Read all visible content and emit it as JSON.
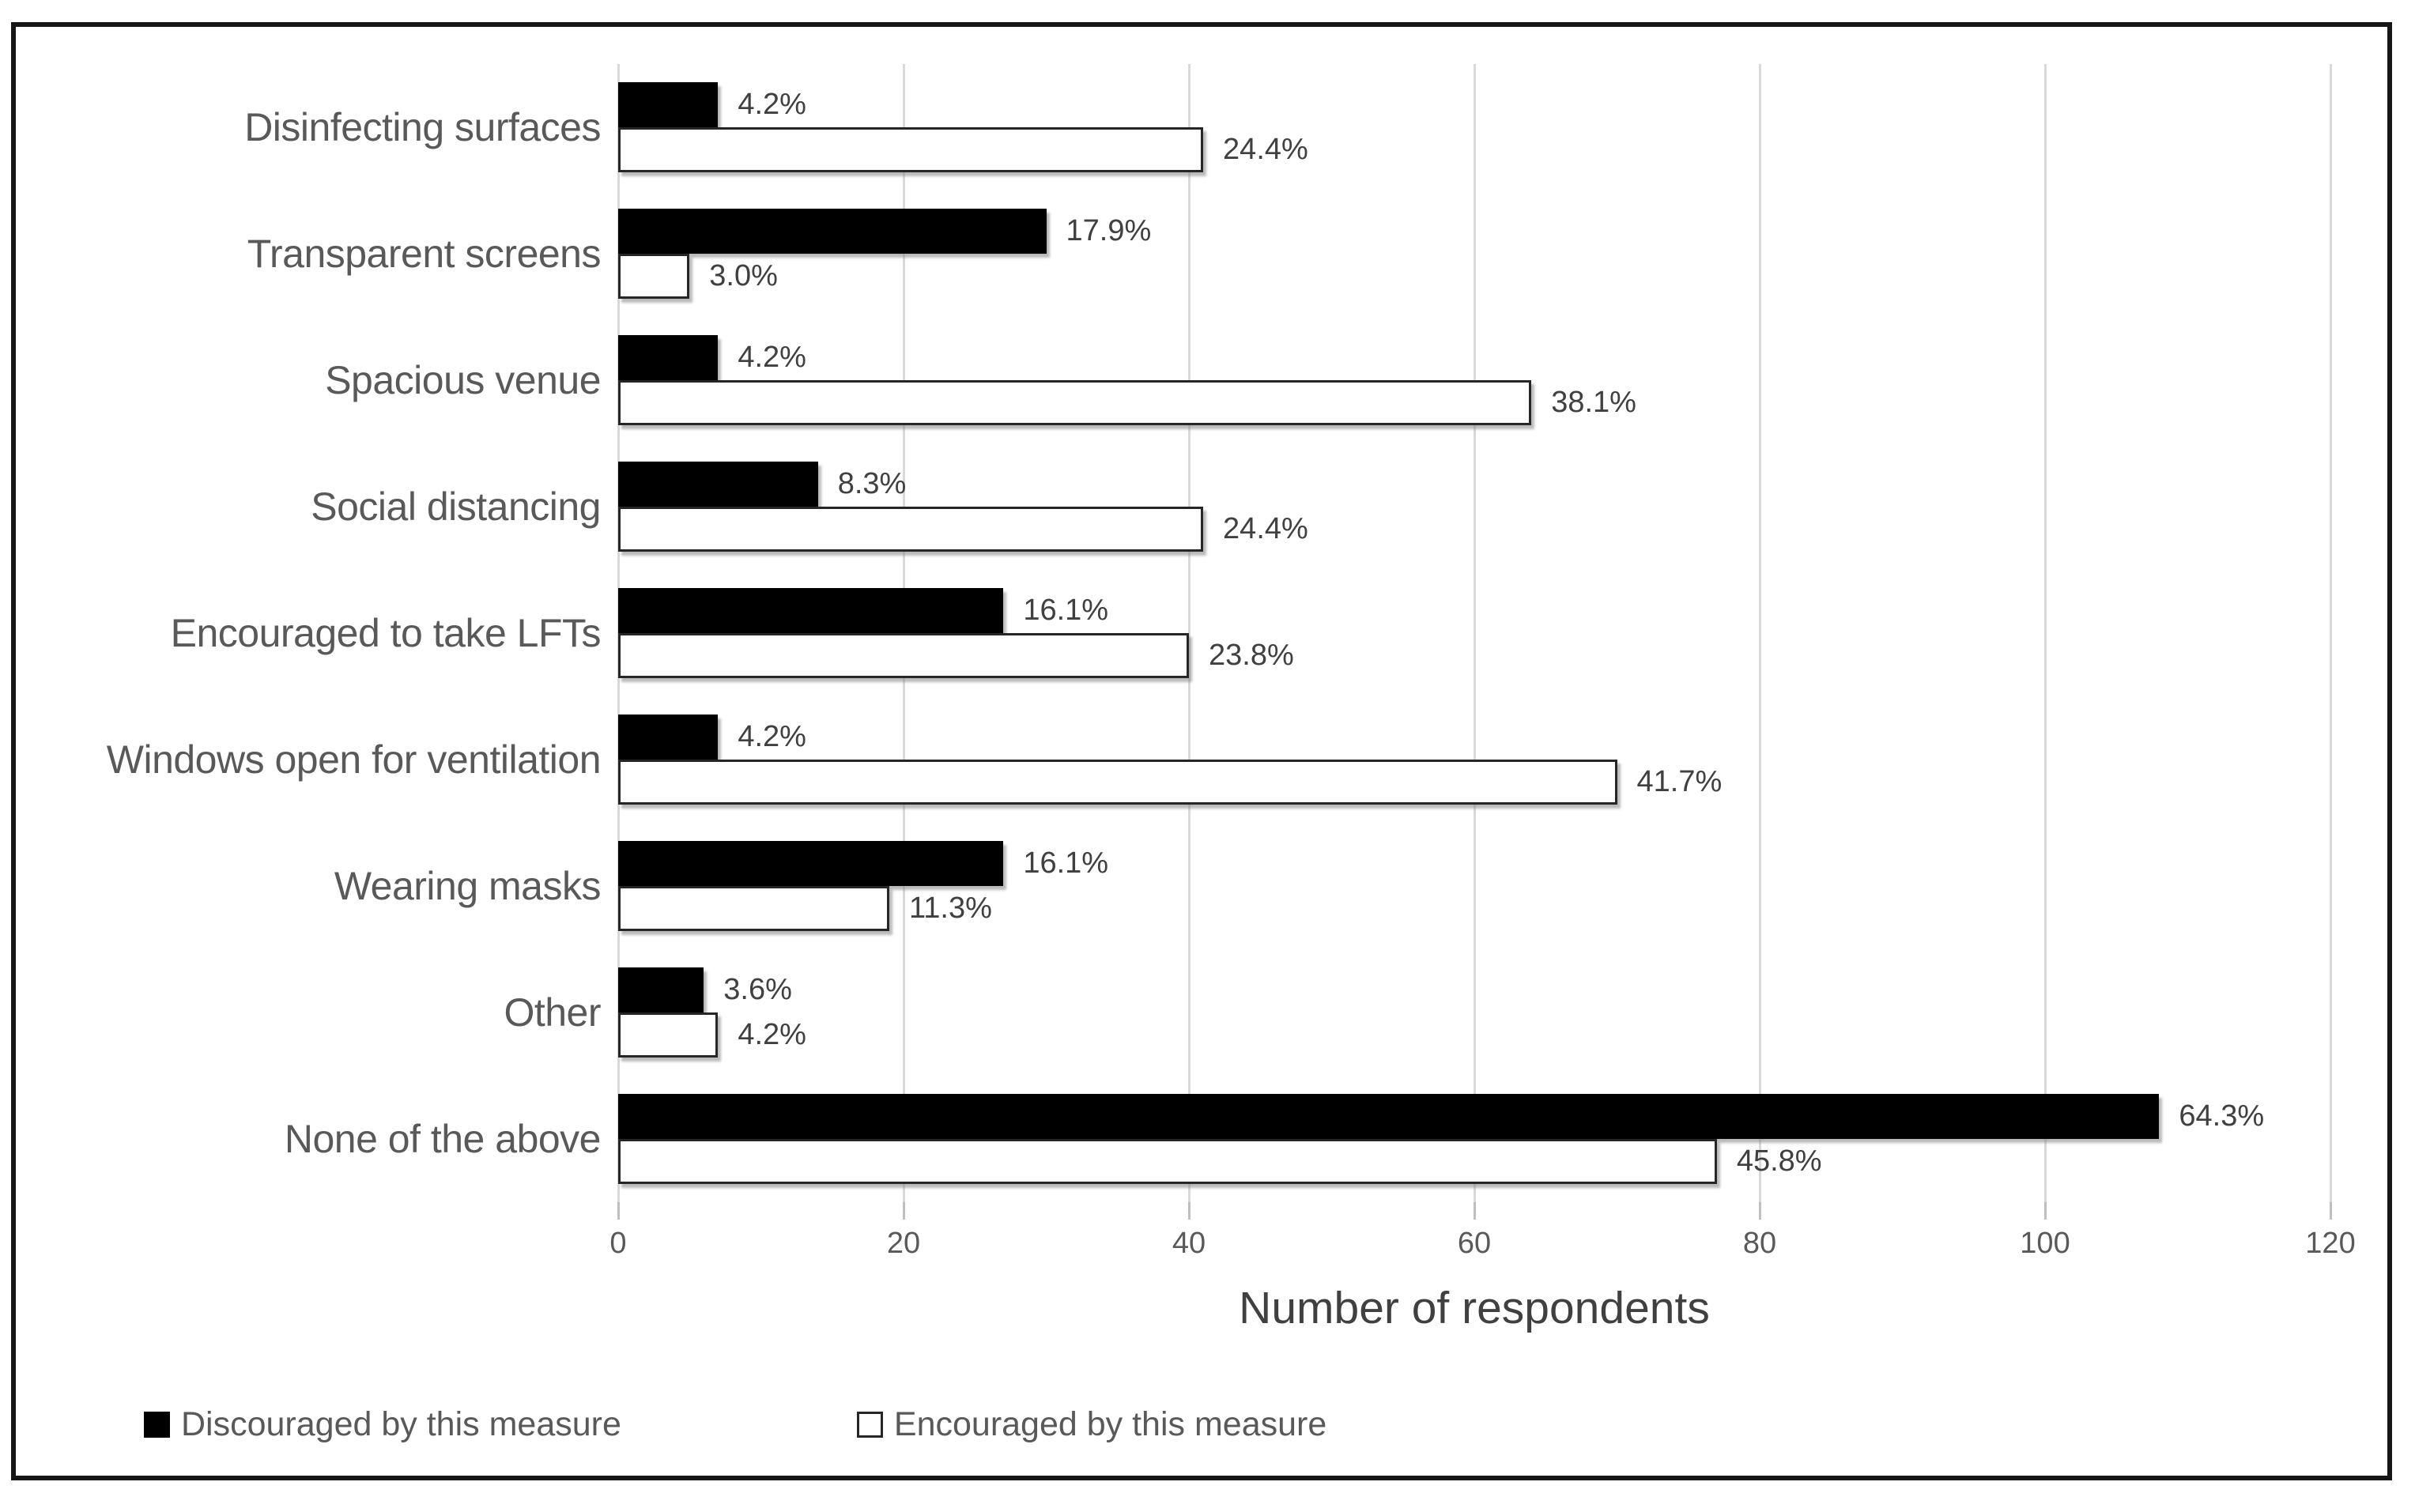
{
  "chart_data": {
    "type": "bar",
    "orientation": "horizontal",
    "xlabel": "Number of respondents",
    "xlim": [
      0,
      120
    ],
    "xticks": [
      0,
      20,
      40,
      60,
      80,
      100,
      120
    ],
    "grid": "vertical",
    "legend_position": "bottom-left",
    "categories": [
      "Disinfecting surfaces",
      "Transparent screens",
      "Spacious venue",
      "Social distancing",
      "Encouraged to take LFTs",
      "Windows open for ventilation",
      "Wearing masks",
      "Other",
      "None of the above"
    ],
    "series": [
      {
        "name": "Discouraged by this measure",
        "color": "#000000",
        "values": [
          7,
          30,
          7,
          14,
          27,
          7,
          27,
          6,
          108
        ],
        "percent_labels": [
          "4.2%",
          "17.9%",
          "4.2%",
          "8.3%",
          "16.1%",
          "4.2%",
          "16.1%",
          "3.6%",
          "64.3%"
        ]
      },
      {
        "name": "Encouraged by this measure",
        "color": "#ffffff",
        "values": [
          41,
          5,
          64,
          41,
          40,
          70,
          19,
          7,
          77
        ],
        "percent_labels": [
          "24.4%",
          "3.0%",
          "38.1%",
          "24.4%",
          "23.8%",
          "41.7%",
          "11.3%",
          "4.2%",
          "45.8%"
        ]
      }
    ],
    "colors": {
      "gridline": "#d9d9d9",
      "bar_discouraged": "#000000",
      "bar_encouraged": "#ffffff",
      "bar_border": "#262626",
      "axis_text": "#595959",
      "data_label_text": "#404040",
      "frame_border": "#161616"
    }
  }
}
